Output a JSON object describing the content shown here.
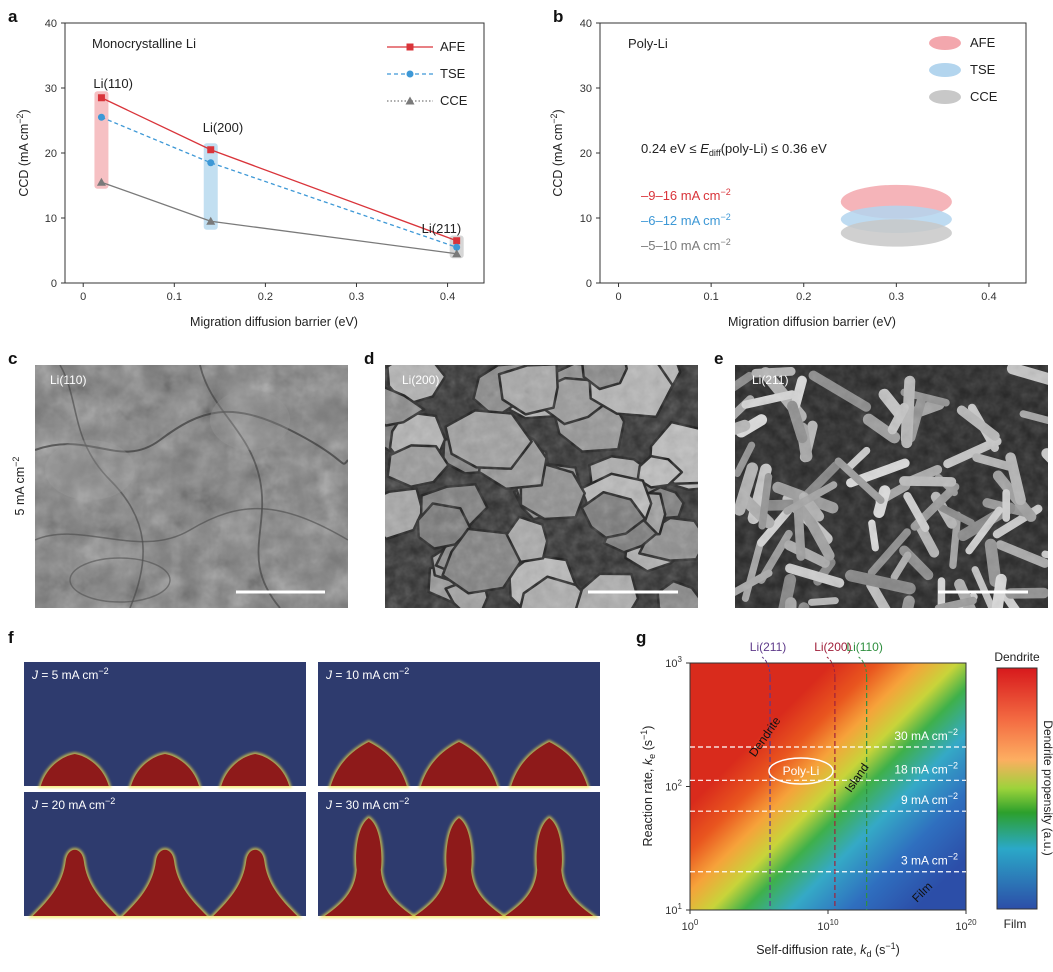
{
  "panel_labels": {
    "a": "a",
    "b": "b",
    "c": "c",
    "d": "d",
    "e": "e",
    "f": "f",
    "g": "g"
  },
  "chart_data": [
    {
      "panel": "a",
      "type": "line",
      "annotation": "Monocrystalline Li",
      "xlabel": "Migration diffusion barrier (eV)",
      "ylabel_main": "CCD (mA cm",
      "ylabel_sup": "−2",
      "ylabel_close": ")",
      "xlim": [
        -0.02,
        0.44
      ],
      "ylim": [
        0,
        40
      ],
      "xticks": [
        0,
        0.1,
        0.2,
        0.3,
        0.4
      ],
      "xtick_labels": [
        "0",
        "0.1",
        "0.2",
        "0.3",
        "0.4"
      ],
      "yticks": [
        0,
        10,
        20,
        30,
        40
      ],
      "ytick_labels": [
        "0",
        "10",
        "20",
        "30",
        "40"
      ],
      "x": [
        0.02,
        0.14,
        0.41
      ],
      "series": [
        {
          "name": "AFE",
          "values": [
            28.5,
            20.5,
            6.5
          ],
          "color": "#d9343a",
          "marker": "square",
          "dash": "solid"
        },
        {
          "name": "TSE",
          "values": [
            25.5,
            18.5,
            5.5
          ],
          "color": "#3d98d6",
          "marker": "circle",
          "dash": "dashed"
        },
        {
          "name": "CCE",
          "values": [
            15.5,
            9.5,
            4.5
          ],
          "color": "#7a7a7a",
          "marker": "triangle",
          "dash": "dotted-solid"
        }
      ],
      "point_labels": [
        "Li(110)",
        "Li(200)",
        "Li(211)"
      ],
      "range_bars": [
        {
          "x": 0.02,
          "ymin": 14.5,
          "ymax": 29.5,
          "color": "#f4b5b8"
        },
        {
          "x": 0.14,
          "ymin": 8.2,
          "ymax": 21.5,
          "color": "#b7d9ef"
        },
        {
          "x": 0.41,
          "ymin": 3.8,
          "ymax": 7.3,
          "color": "#cfcfcf"
        }
      ],
      "legend_position": "top-right"
    },
    {
      "panel": "b",
      "type": "scatter",
      "annotation": "Poly-Li",
      "xlabel": "Migration diffusion barrier (eV)",
      "ylabel_main": "CCD (mA cm",
      "ylabel_sup": "−2",
      "ylabel_close": ")",
      "xlim": [
        -0.02,
        0.44
      ],
      "ylim": [
        0,
        40
      ],
      "xticks": [
        0,
        0.1,
        0.2,
        0.3,
        0.4
      ],
      "xtick_labels": [
        "0",
        "0.1",
        "0.2",
        "0.3",
        "0.4"
      ],
      "yticks": [
        0,
        10,
        20,
        30,
        40
      ],
      "ytick_labels": [
        "0",
        "10",
        "20",
        "30",
        "40"
      ],
      "barrier_range": {
        "pre": "0.24 eV ≤ ",
        "var": "E",
        "sub": "diff",
        "post": "(poly-Li) ≤ 0.36 eV"
      },
      "ellipses": [
        {
          "name": "AFE",
          "x": 0.3,
          "y": 12.5,
          "rx": 0.06,
          "ry": 2.6,
          "color": "#f3a7ad",
          "range_text": "–9–16 mA cm",
          "text_color": "#d9343a"
        },
        {
          "name": "TSE",
          "x": 0.3,
          "y": 9.8,
          "rx": 0.06,
          "ry": 2.1,
          "color": "#b3d5ee",
          "range_text": "–6–12 mA cm",
          "text_color": "#3d98d6"
        },
        {
          "name": "CCE",
          "x": 0.3,
          "y": 7.7,
          "rx": 0.06,
          "ry": 2.1,
          "color": "#c8c8c8",
          "range_text": "–5–10 mA cm",
          "text_color": "#7a7a7a"
        }
      ],
      "unit_sup": "−2",
      "legend_position": "top-right"
    },
    {
      "panel": "g",
      "type": "heatmap",
      "xlabel_main": "Self-diffusion rate, ",
      "xlabel_var": "k",
      "xlabel_sub": "d",
      "xlabel_unit": " (s",
      "xlabel_unit_sup": "−1",
      "xlabel_close": ")",
      "ylabel_main": "Reaction rate, ",
      "ylabel_var": "k",
      "ylabel_sub": "e",
      "ylabel_unit": " (s",
      "ylabel_unit_sup": "−1",
      "ylabel_close": ")",
      "x_scale": "log",
      "y_scale": "log",
      "x_exp_range": [
        0,
        20
      ],
      "y_exp_range": [
        1,
        3
      ],
      "xticks": [
        {
          "base": "10",
          "exp": "0",
          "value_exp": 0
        },
        {
          "base": "10",
          "exp": "10",
          "value_exp": 10
        },
        {
          "base": "10",
          "exp": "20",
          "value_exp": 20
        }
      ],
      "yticks": [
        {
          "base": "10",
          "exp": "1",
          "value_exp": 1
        },
        {
          "base": "10",
          "exp": "2",
          "value_exp": 2
        },
        {
          "base": "10",
          "exp": "3",
          "value_exp": 3
        }
      ],
      "vertical_lines": [
        {
          "label": "Li(211)",
          "x_exp": 5.8,
          "color": "#5e3a8a"
        },
        {
          "label": "Li(200)",
          "x_exp": 10.5,
          "color": "#a0203a"
        },
        {
          "label": "Li(110)",
          "x_exp": 12.8,
          "color": "#2f8f3f"
        }
      ],
      "horizontal_lines": [
        {
          "label": "30 mA cm",
          "sup": "−2",
          "y_exp": 2.32
        },
        {
          "label": "18 mA cm",
          "sup": "−2",
          "y_exp": 2.05
        },
        {
          "label": "9 mA cm",
          "sup": "−2",
          "y_exp": 1.8
        },
        {
          "label": "3 mA cm",
          "sup": "−2",
          "y_exp": 1.31
        }
      ],
      "region_labels": [
        "Dendrite",
        "Island",
        "Film"
      ],
      "poly_label": "Poly-Li",
      "colorbar": {
        "top": "Dendrite",
        "bottom": "Film",
        "label": "Dendrite propensity (a.u.)"
      }
    }
  ],
  "sem": {
    "row_label_main": "5 mA cm",
    "row_label_sup": "−2",
    "images": [
      {
        "panel": "c",
        "label": "Li(110)",
        "style": "smooth"
      },
      {
        "panel": "d",
        "label": "Li(200)",
        "style": "granular"
      },
      {
        "panel": "e",
        "label": "Li(211)",
        "style": "rods"
      }
    ]
  },
  "simulation": {
    "tiles": [
      {
        "var": "J",
        "text": " = 5 mA cm",
        "sup": "−2",
        "stage": 1
      },
      {
        "var": "J",
        "text": " = 10 mA cm",
        "sup": "−2",
        "stage": 2
      },
      {
        "var": "J",
        "text": " = 20 mA cm",
        "sup": "−2",
        "stage": 3
      },
      {
        "var": "J",
        "text": " = 30 mA cm",
        "sup": "−2",
        "stage": 4
      }
    ],
    "background_color": "#2e3b6e",
    "deposit_color": "#8e1a1a"
  }
}
